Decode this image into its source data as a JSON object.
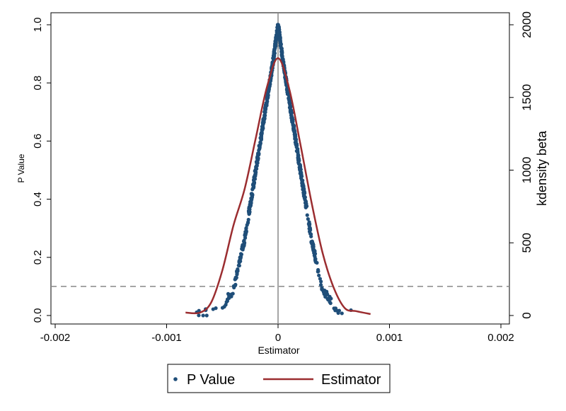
{
  "chart_data": {
    "type": "scatter",
    "xlabel": "Estimator",
    "ylabel": "P Value",
    "y2label": "kdensity beta",
    "xlim": [
      -0.002,
      0.002
    ],
    "ylim": [
      0,
      1
    ],
    "y2lim": [
      0,
      2000
    ],
    "x_ticks": [
      "-0.002",
      "-0.001",
      "0",
      "0.001",
      "0.002"
    ],
    "y_ticks": [
      "0.0",
      "0.2",
      "0.4",
      "0.6",
      "0.8",
      "1.0"
    ],
    "y2_ticks": [
      "0",
      "500",
      "1000",
      "1500",
      "2000"
    ],
    "reference_lines": {
      "vertical_x": 0,
      "horizontal_y": 0.1
    },
    "grid": false,
    "legend_position": "bottom",
    "colors": {
      "p_value": "#1f4e79",
      "estimator": "#9b2d30",
      "reference": "#888888"
    },
    "series": [
      {
        "name": "P Value",
        "kind": "scatter",
        "axis": "left",
        "profile": {
          "x": [
            -0.00083,
            -0.0007,
            -0.0006,
            -0.0005,
            -0.0004,
            -0.0003,
            -0.0002,
            -0.0001,
            -5e-05,
            0,
            5e-05,
            0.0001,
            0.0002,
            0.0003,
            0.0004,
            0.0005,
            0.0006,
            0.0007,
            0.00083
          ],
          "y": [
            0.0,
            0.005,
            0.01,
            0.03,
            0.09,
            0.26,
            0.5,
            0.74,
            0.86,
            1.0,
            0.86,
            0.74,
            0.5,
            0.26,
            0.09,
            0.03,
            0.01,
            0.005,
            0.0
          ]
        }
      },
      {
        "name": "Estimator",
        "kind": "line",
        "axis": "right",
        "x": [
          -0.00083,
          -0.0007,
          -0.0006,
          -0.0005,
          -0.0004,
          -0.0003,
          -0.0002,
          -0.0001,
          0,
          0.0001,
          0.0002,
          0.0003,
          0.0004,
          0.0005,
          0.0006,
          0.0007,
          0.00083
        ],
        "y": [
          20,
          20,
          90,
          310,
          620,
          870,
          1220,
          1570,
          1770,
          1560,
          1180,
          780,
          430,
          190,
          50,
          30,
          10
        ]
      }
    ]
  }
}
